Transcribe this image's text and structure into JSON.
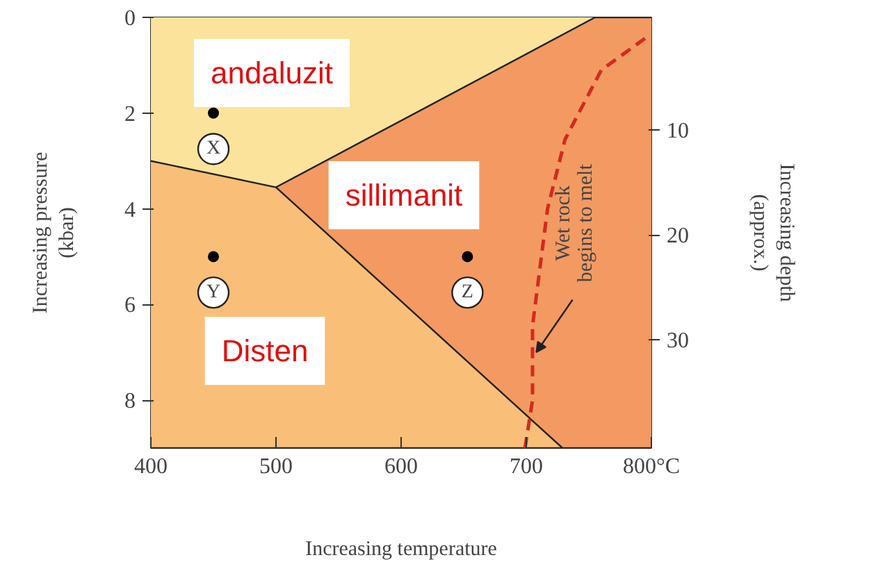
{
  "chart_data": {
    "type": "area",
    "xlabel": "Increasing temperature",
    "ylabel": "Increasing pressure\n(kbar)",
    "y2label": "Increasing depth\n(approx.)",
    "xlim": [
      400,
      800
    ],
    "xticks": [
      400,
      500,
      600,
      700,
      {
        "value": 800,
        "label": "800°C"
      }
    ],
    "ylim": [
      9,
      0
    ],
    "yticks": [
      0,
      2,
      4,
      6,
      8
    ],
    "y2lim": [
      40.3,
      -0.7
    ],
    "y2ticks": [
      10,
      20,
      30
    ],
    "series": [
      {
        "color": "#f9bf78",
        "x": [
          400,
          800
        ],
        "values": [
          9,
          9
        ]
      },
      {
        "color": "#f39a62",
        "x": [
          500,
          729,
          800
        ],
        "values": [
          3.55,
          9,
          9
        ]
      },
      {
        "color": "#fbe39c",
        "x": [
          400,
          500,
          755,
          800
        ],
        "values": [
          3.0,
          3.55,
          0,
          0
        ]
      },
      {
        "type": "line",
        "name": "Wet rock\nbegins to melt",
        "color": "#d42a20",
        "line_style": "dashed",
        "x": [
          699,
          705,
          705,
          717,
          731,
          760,
          798
        ],
        "values": [
          9,
          8,
          6.45,
          4,
          2.55,
          1.1,
          0.38
        ]
      },
      {
        "type": "scatter",
        "color": "#000000",
        "marker": "circle",
        "x": [
          450,
          450,
          653
        ],
        "values": [
          2,
          5,
          5
        ],
        "value_labels": [
          "X",
          "Y",
          "Z"
        ]
      }
    ],
    "annotations": [
      "andaluzit",
      "sillimanit",
      "Disten"
    ]
  }
}
